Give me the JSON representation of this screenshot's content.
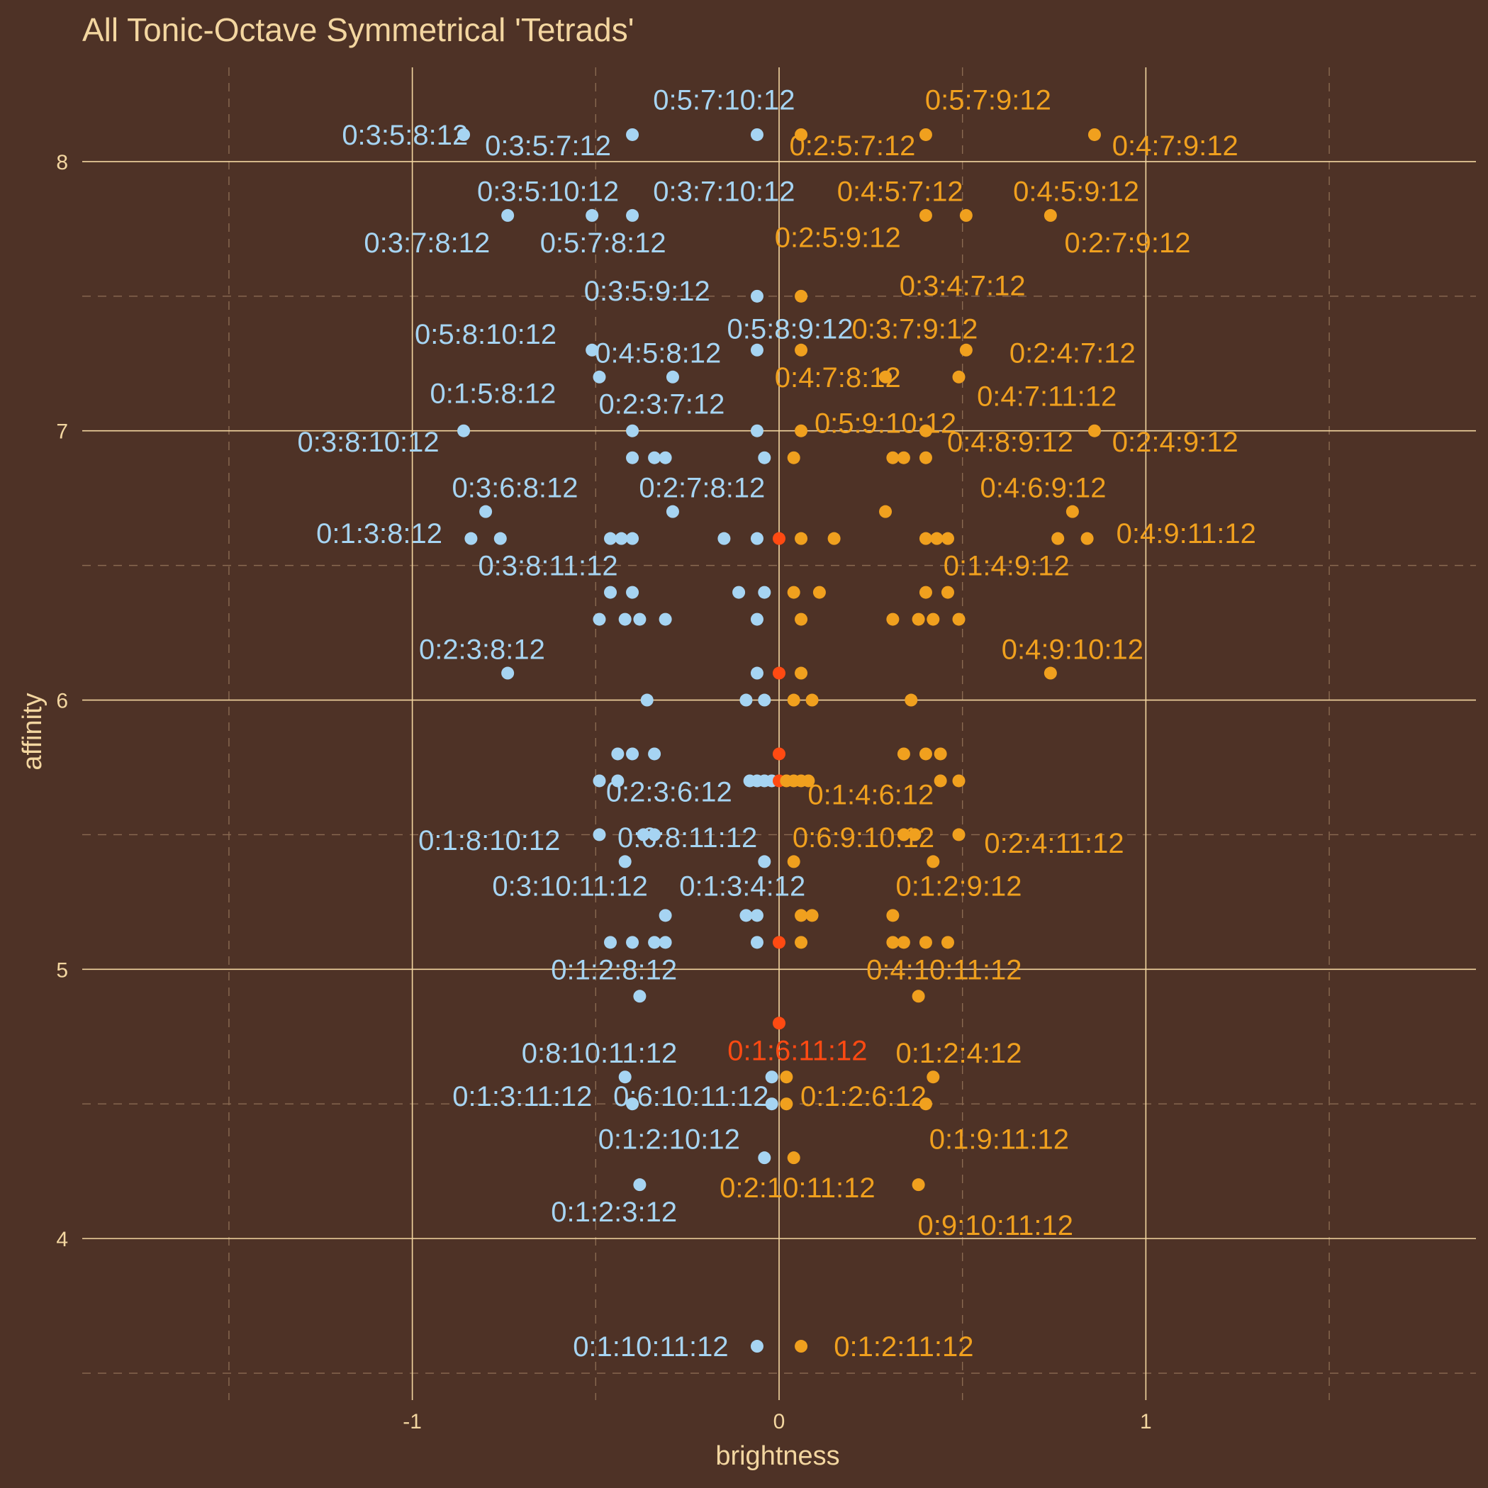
{
  "chart_data": {
    "type": "scatter",
    "title": "All Tonic-Octave Symmetrical 'Tetrads'",
    "xlabel": "brightness",
    "ylabel": "affinity",
    "xlim": [
      -1.9,
      1.9
    ],
    "ylim": [
      3.4,
      8.35
    ],
    "x_ticks": [
      -1,
      0,
      1
    ],
    "y_ticks": [
      4,
      5,
      6,
      7,
      8
    ],
    "grid": true,
    "legend": "none",
    "colors": {
      "dark": "#a6d4f2",
      "light": "#f0a01e",
      "neutral": "#ff4a12"
    },
    "points": [
      {
        "x": -0.86,
        "y": 8.1,
        "c": "dark"
      },
      {
        "x": -0.4,
        "y": 8.1,
        "c": "dark"
      },
      {
        "x": -0.06,
        "y": 8.1,
        "c": "dark"
      },
      {
        "x": 0.06,
        "y": 8.1,
        "c": "light"
      },
      {
        "x": 0.4,
        "y": 8.1,
        "c": "light"
      },
      {
        "x": 0.86,
        "y": 8.1,
        "c": "light"
      },
      {
        "x": -0.74,
        "y": 7.8,
        "c": "dark"
      },
      {
        "x": -0.51,
        "y": 7.8,
        "c": "dark"
      },
      {
        "x": -0.4,
        "y": 7.8,
        "c": "dark"
      },
      {
        "x": 0.4,
        "y": 7.8,
        "c": "light"
      },
      {
        "x": 0.51,
        "y": 7.8,
        "c": "light"
      },
      {
        "x": 0.74,
        "y": 7.8,
        "c": "light"
      },
      {
        "x": -0.06,
        "y": 7.5,
        "c": "dark"
      },
      {
        "x": 0.06,
        "y": 7.5,
        "c": "light"
      },
      {
        "x": -0.51,
        "y": 7.3,
        "c": "dark"
      },
      {
        "x": -0.06,
        "y": 7.3,
        "c": "dark"
      },
      {
        "x": 0.06,
        "y": 7.3,
        "c": "light"
      },
      {
        "x": 0.51,
        "y": 7.3,
        "c": "light"
      },
      {
        "x": -0.49,
        "y": 7.2,
        "c": "dark"
      },
      {
        "x": -0.29,
        "y": 7.2,
        "c": "dark"
      },
      {
        "x": 0.29,
        "y": 7.2,
        "c": "light"
      },
      {
        "x": 0.49,
        "y": 7.2,
        "c": "light"
      },
      {
        "x": -0.86,
        "y": 7.0,
        "c": "dark"
      },
      {
        "x": -0.4,
        "y": 7.0,
        "c": "dark"
      },
      {
        "x": -0.06,
        "y": 7.0,
        "c": "dark"
      },
      {
        "x": 0.06,
        "y": 7.0,
        "c": "light"
      },
      {
        "x": 0.4,
        "y": 7.0,
        "c": "light"
      },
      {
        "x": 0.86,
        "y": 7.0,
        "c": "light"
      },
      {
        "x": -0.4,
        "y": 6.9,
        "c": "dark"
      },
      {
        "x": -0.34,
        "y": 6.9,
        "c": "dark"
      },
      {
        "x": -0.31,
        "y": 6.9,
        "c": "dark"
      },
      {
        "x": -0.04,
        "y": 6.9,
        "c": "dark"
      },
      {
        "x": 0.04,
        "y": 6.9,
        "c": "light"
      },
      {
        "x": 0.31,
        "y": 6.9,
        "c": "light"
      },
      {
        "x": 0.34,
        "y": 6.9,
        "c": "light"
      },
      {
        "x": 0.4,
        "y": 6.9,
        "c": "light"
      },
      {
        "x": -0.8,
        "y": 6.7,
        "c": "dark"
      },
      {
        "x": -0.29,
        "y": 6.7,
        "c": "dark"
      },
      {
        "x": 0.29,
        "y": 6.7,
        "c": "light"
      },
      {
        "x": 0.8,
        "y": 6.7,
        "c": "light"
      },
      {
        "x": -0.84,
        "y": 6.6,
        "c": "dark"
      },
      {
        "x": -0.76,
        "y": 6.6,
        "c": "dark"
      },
      {
        "x": -0.46,
        "y": 6.6,
        "c": "dark"
      },
      {
        "x": -0.43,
        "y": 6.6,
        "c": "dark"
      },
      {
        "x": -0.4,
        "y": 6.6,
        "c": "dark"
      },
      {
        "x": -0.15,
        "y": 6.6,
        "c": "dark"
      },
      {
        "x": -0.06,
        "y": 6.6,
        "c": "dark"
      },
      {
        "x": 0.0,
        "y": 6.6,
        "c": "neutral"
      },
      {
        "x": 0.06,
        "y": 6.6,
        "c": "light"
      },
      {
        "x": 0.15,
        "y": 6.6,
        "c": "light"
      },
      {
        "x": 0.4,
        "y": 6.6,
        "c": "light"
      },
      {
        "x": 0.43,
        "y": 6.6,
        "c": "light"
      },
      {
        "x": 0.46,
        "y": 6.6,
        "c": "light"
      },
      {
        "x": 0.76,
        "y": 6.6,
        "c": "light"
      },
      {
        "x": 0.84,
        "y": 6.6,
        "c": "light"
      },
      {
        "x": -0.46,
        "y": 6.4,
        "c": "dark"
      },
      {
        "x": -0.4,
        "y": 6.4,
        "c": "dark"
      },
      {
        "x": -0.11,
        "y": 6.4,
        "c": "dark"
      },
      {
        "x": -0.04,
        "y": 6.4,
        "c": "dark"
      },
      {
        "x": 0.04,
        "y": 6.4,
        "c": "light"
      },
      {
        "x": 0.11,
        "y": 6.4,
        "c": "light"
      },
      {
        "x": 0.4,
        "y": 6.4,
        "c": "light"
      },
      {
        "x": 0.46,
        "y": 6.4,
        "c": "light"
      },
      {
        "x": -0.49,
        "y": 6.3,
        "c": "dark"
      },
      {
        "x": -0.42,
        "y": 6.3,
        "c": "dark"
      },
      {
        "x": -0.38,
        "y": 6.3,
        "c": "dark"
      },
      {
        "x": -0.31,
        "y": 6.3,
        "c": "dark"
      },
      {
        "x": -0.06,
        "y": 6.3,
        "c": "dark"
      },
      {
        "x": 0.06,
        "y": 6.3,
        "c": "light"
      },
      {
        "x": 0.31,
        "y": 6.3,
        "c": "light"
      },
      {
        "x": 0.38,
        "y": 6.3,
        "c": "light"
      },
      {
        "x": 0.42,
        "y": 6.3,
        "c": "light"
      },
      {
        "x": 0.49,
        "y": 6.3,
        "c": "light"
      },
      {
        "x": -0.74,
        "y": 6.1,
        "c": "dark"
      },
      {
        "x": -0.06,
        "y": 6.1,
        "c": "dark"
      },
      {
        "x": 0.0,
        "y": 6.1,
        "c": "neutral"
      },
      {
        "x": 0.06,
        "y": 6.1,
        "c": "light"
      },
      {
        "x": 0.74,
        "y": 6.1,
        "c": "light"
      },
      {
        "x": -0.36,
        "y": 6.0,
        "c": "dark"
      },
      {
        "x": -0.09,
        "y": 6.0,
        "c": "dark"
      },
      {
        "x": -0.04,
        "y": 6.0,
        "c": "dark"
      },
      {
        "x": 0.04,
        "y": 6.0,
        "c": "light"
      },
      {
        "x": 0.09,
        "y": 6.0,
        "c": "light"
      },
      {
        "x": 0.36,
        "y": 6.0,
        "c": "light"
      },
      {
        "x": -0.44,
        "y": 5.8,
        "c": "dark"
      },
      {
        "x": -0.4,
        "y": 5.8,
        "c": "dark"
      },
      {
        "x": -0.34,
        "y": 5.8,
        "c": "dark"
      },
      {
        "x": 0.0,
        "y": 5.8,
        "c": "neutral"
      },
      {
        "x": 0.34,
        "y": 5.8,
        "c": "light"
      },
      {
        "x": 0.4,
        "y": 5.8,
        "c": "light"
      },
      {
        "x": 0.44,
        "y": 5.8,
        "c": "light"
      },
      {
        "x": -0.49,
        "y": 5.7,
        "c": "dark"
      },
      {
        "x": -0.44,
        "y": 5.7,
        "c": "dark"
      },
      {
        "x": -0.08,
        "y": 5.7,
        "c": "dark"
      },
      {
        "x": -0.06,
        "y": 5.7,
        "c": "dark"
      },
      {
        "x": -0.04,
        "y": 5.7,
        "c": "dark"
      },
      {
        "x": -0.02,
        "y": 5.7,
        "c": "dark"
      },
      {
        "x": 0.0,
        "y": 5.7,
        "c": "neutral"
      },
      {
        "x": 0.02,
        "y": 5.7,
        "c": "light"
      },
      {
        "x": 0.04,
        "y": 5.7,
        "c": "light"
      },
      {
        "x": 0.06,
        "y": 5.7,
        "c": "light"
      },
      {
        "x": 0.08,
        "y": 5.7,
        "c": "light"
      },
      {
        "x": 0.44,
        "y": 5.7,
        "c": "light"
      },
      {
        "x": 0.49,
        "y": 5.7,
        "c": "light"
      },
      {
        "x": -0.49,
        "y": 5.5,
        "c": "dark"
      },
      {
        "x": -0.37,
        "y": 5.5,
        "c": "dark"
      },
      {
        "x": -0.34,
        "y": 5.5,
        "c": "dark"
      },
      {
        "x": 0.34,
        "y": 5.5,
        "c": "light"
      },
      {
        "x": 0.37,
        "y": 5.5,
        "c": "light"
      },
      {
        "x": 0.49,
        "y": 5.5,
        "c": "light"
      },
      {
        "x": -0.42,
        "y": 5.4,
        "c": "dark"
      },
      {
        "x": -0.04,
        "y": 5.4,
        "c": "dark"
      },
      {
        "x": 0.04,
        "y": 5.4,
        "c": "light"
      },
      {
        "x": 0.42,
        "y": 5.4,
        "c": "light"
      },
      {
        "x": -0.31,
        "y": 5.2,
        "c": "dark"
      },
      {
        "x": -0.09,
        "y": 5.2,
        "c": "dark"
      },
      {
        "x": -0.06,
        "y": 5.2,
        "c": "dark"
      },
      {
        "x": 0.06,
        "y": 5.2,
        "c": "light"
      },
      {
        "x": 0.09,
        "y": 5.2,
        "c": "light"
      },
      {
        "x": 0.31,
        "y": 5.2,
        "c": "light"
      },
      {
        "x": -0.46,
        "y": 5.1,
        "c": "dark"
      },
      {
        "x": -0.4,
        "y": 5.1,
        "c": "dark"
      },
      {
        "x": -0.34,
        "y": 5.1,
        "c": "dark"
      },
      {
        "x": -0.31,
        "y": 5.1,
        "c": "dark"
      },
      {
        "x": -0.06,
        "y": 5.1,
        "c": "dark"
      },
      {
        "x": 0.0,
        "y": 5.1,
        "c": "neutral"
      },
      {
        "x": 0.06,
        "y": 5.1,
        "c": "light"
      },
      {
        "x": 0.31,
        "y": 5.1,
        "c": "light"
      },
      {
        "x": 0.34,
        "y": 5.1,
        "c": "light"
      },
      {
        "x": 0.4,
        "y": 5.1,
        "c": "light"
      },
      {
        "x": 0.46,
        "y": 5.1,
        "c": "light"
      },
      {
        "x": -0.38,
        "y": 4.9,
        "c": "dark"
      },
      {
        "x": 0.38,
        "y": 4.9,
        "c": "light"
      },
      {
        "x": 0.0,
        "y": 4.8,
        "c": "neutral"
      },
      {
        "x": -0.42,
        "y": 4.6,
        "c": "dark"
      },
      {
        "x": -0.02,
        "y": 4.6,
        "c": "dark"
      },
      {
        "x": 0.02,
        "y": 4.6,
        "c": "light"
      },
      {
        "x": 0.42,
        "y": 4.6,
        "c": "light"
      },
      {
        "x": -0.4,
        "y": 4.5,
        "c": "dark"
      },
      {
        "x": -0.02,
        "y": 4.5,
        "c": "dark"
      },
      {
        "x": 0.02,
        "y": 4.5,
        "c": "light"
      },
      {
        "x": 0.4,
        "y": 4.5,
        "c": "light"
      },
      {
        "x": -0.04,
        "y": 4.3,
        "c": "dark"
      },
      {
        "x": 0.04,
        "y": 4.3,
        "c": "light"
      },
      {
        "x": -0.38,
        "y": 4.2,
        "c": "dark"
      },
      {
        "x": 0.38,
        "y": 4.2,
        "c": "light"
      },
      {
        "x": -0.06,
        "y": 3.6,
        "c": "dark"
      },
      {
        "x": 0.06,
        "y": 3.6,
        "c": "light"
      }
    ],
    "labels": [
      {
        "text": "0:5:7:10:12",
        "x": -0.15,
        "y": 8.23,
        "c": "dark"
      },
      {
        "text": "0:3:5:8:12",
        "x": -1.02,
        "y": 8.1,
        "c": "dark"
      },
      {
        "text": "0:3:5:7:12",
        "x": -0.63,
        "y": 8.06,
        "c": "dark"
      },
      {
        "text": "0:5:7:9:12",
        "x": 0.57,
        "y": 8.23,
        "c": "light"
      },
      {
        "text": "0:2:5:7:12",
        "x": 0.2,
        "y": 8.06,
        "c": "light"
      },
      {
        "text": "0:4:7:9:12",
        "x": 1.08,
        "y": 8.06,
        "c": "light"
      },
      {
        "text": "0:3:5:10:12",
        "x": -0.63,
        "y": 7.89,
        "c": "dark"
      },
      {
        "text": "0:3:7:10:12",
        "x": -0.15,
        "y": 7.89,
        "c": "dark"
      },
      {
        "text": "0:3:7:8:12",
        "x": -0.96,
        "y": 7.7,
        "c": "dark"
      },
      {
        "text": "0:5:7:8:12",
        "x": -0.48,
        "y": 7.7,
        "c": "dark"
      },
      {
        "text": "0:4:5:7:12",
        "x": 0.33,
        "y": 7.89,
        "c": "light"
      },
      {
        "text": "0:4:5:9:12",
        "x": 0.81,
        "y": 7.89,
        "c": "light"
      },
      {
        "text": "0:2:5:9:12",
        "x": 0.16,
        "y": 7.72,
        "c": "light"
      },
      {
        "text": "0:2:7:9:12",
        "x": 0.95,
        "y": 7.7,
        "c": "light"
      },
      {
        "text": "0:3:5:9:12",
        "x": -0.36,
        "y": 7.52,
        "c": "dark"
      },
      {
        "text": "0:3:4:7:12",
        "x": 0.5,
        "y": 7.54,
        "c": "light"
      },
      {
        "text": "0:5:8:10:12",
        "x": -0.8,
        "y": 7.36,
        "c": "dark"
      },
      {
        "text": "0:5:8:9:12",
        "x": 0.03,
        "y": 7.38,
        "c": "dark"
      },
      {
        "text": "0:3:7:9:12",
        "x": 0.37,
        "y": 7.38,
        "c": "light"
      },
      {
        "text": "0:4:5:8:12",
        "x": -0.33,
        "y": 7.29,
        "c": "dark"
      },
      {
        "text": "0:2:4:7:12",
        "x": 0.8,
        "y": 7.29,
        "c": "light"
      },
      {
        "text": "0:4:7:8:12",
        "x": 0.16,
        "y": 7.2,
        "c": "light"
      },
      {
        "text": "0:1:5:8:12",
        "x": -0.78,
        "y": 7.14,
        "c": "dark"
      },
      {
        "text": "0:4:7:11:12",
        "x": 0.73,
        "y": 7.13,
        "c": "light"
      },
      {
        "text": "0:2:3:7:12",
        "x": -0.32,
        "y": 7.1,
        "c": "dark"
      },
      {
        "text": "0:5:9:10:12",
        "x": 0.29,
        "y": 7.03,
        "c": "light"
      },
      {
        "text": "0:3:8:10:12",
        "x": -1.12,
        "y": 6.96,
        "c": "dark"
      },
      {
        "text": "0:4:8:9:12",
        "x": 0.63,
        "y": 6.96,
        "c": "light"
      },
      {
        "text": "0:2:4:9:12",
        "x": 1.08,
        "y": 6.96,
        "c": "light"
      },
      {
        "text": "0:3:6:8:12",
        "x": -0.72,
        "y": 6.79,
        "c": "dark"
      },
      {
        "text": "0:2:7:8:12",
        "x": -0.21,
        "y": 6.79,
        "c": "dark"
      },
      {
        "text": "0:4:6:9:12",
        "x": 0.72,
        "y": 6.79,
        "c": "light"
      },
      {
        "text": "0:1:3:8:12",
        "x": -1.09,
        "y": 6.62,
        "c": "dark"
      },
      {
        "text": "0:4:9:11:12",
        "x": 1.11,
        "y": 6.62,
        "c": "light"
      },
      {
        "text": "0:3:8:11:12",
        "x": -0.63,
        "y": 6.5,
        "c": "dark"
      },
      {
        "text": "0:1:4:9:12",
        "x": 0.62,
        "y": 6.5,
        "c": "light"
      },
      {
        "text": "0:2:3:8:12",
        "x": -0.81,
        "y": 6.19,
        "c": "dark"
      },
      {
        "text": "0:4:9:10:12",
        "x": 0.8,
        "y": 6.19,
        "c": "light"
      },
      {
        "text": "0:2:3:6:12",
        "x": -0.3,
        "y": 5.66,
        "c": "dark"
      },
      {
        "text": "0:1:4:6:12",
        "x": 0.25,
        "y": 5.65,
        "c": "light"
      },
      {
        "text": "0:1:8:10:12",
        "x": -0.79,
        "y": 5.48,
        "c": "dark"
      },
      {
        "text": "0:6:8:11:12",
        "x": -0.25,
        "y": 5.49,
        "c": "dark"
      },
      {
        "text": "0:6:9:10:12",
        "x": 0.23,
        "y": 5.49,
        "c": "light"
      },
      {
        "text": "0:2:4:11:12",
        "x": 0.75,
        "y": 5.47,
        "c": "light"
      },
      {
        "text": "0:3:10:11:12",
        "x": -0.57,
        "y": 5.31,
        "c": "dark"
      },
      {
        "text": "0:1:3:4:12",
        "x": -0.1,
        "y": 5.31,
        "c": "dark"
      },
      {
        "text": "0:1:2:9:12",
        "x": 0.49,
        "y": 5.31,
        "c": "light"
      },
      {
        "text": "0:1:2:8:12",
        "x": -0.45,
        "y": 5.0,
        "c": "dark"
      },
      {
        "text": "0:4:10:11:12",
        "x": 0.45,
        "y": 5.0,
        "c": "light"
      },
      {
        "text": "0:1:6:11:12",
        "x": 0.05,
        "y": 4.7,
        "c": "neutral"
      },
      {
        "text": "0:8:10:11:12",
        "x": -0.49,
        "y": 4.69,
        "c": "dark"
      },
      {
        "text": "0:1:2:4:12",
        "x": 0.49,
        "y": 4.69,
        "c": "light"
      },
      {
        "text": "0:1:3:11:12",
        "x": -0.7,
        "y": 4.53,
        "c": "dark"
      },
      {
        "text": "0:6:10:11:12",
        "x": -0.24,
        "y": 4.53,
        "c": "dark"
      },
      {
        "text": "0:1:2:6:12",
        "x": 0.23,
        "y": 4.53,
        "c": "light"
      },
      {
        "text": "0:1:2:10:12",
        "x": -0.3,
        "y": 4.37,
        "c": "dark"
      },
      {
        "text": "0:1:9:11:12",
        "x": 0.6,
        "y": 4.37,
        "c": "light"
      },
      {
        "text": "0:2:10:11:12",
        "x": 0.05,
        "y": 4.19,
        "c": "light"
      },
      {
        "text": "0:1:2:3:12",
        "x": -0.45,
        "y": 4.1,
        "c": "dark"
      },
      {
        "text": "0:9:10:11:12",
        "x": 0.59,
        "y": 4.05,
        "c": "light"
      },
      {
        "text": "0:1:10:11:12",
        "x": -0.35,
        "y": 3.6,
        "c": "dark"
      },
      {
        "text": "0:1:2:11:12",
        "x": 0.34,
        "y": 3.6,
        "c": "light"
      }
    ]
  }
}
